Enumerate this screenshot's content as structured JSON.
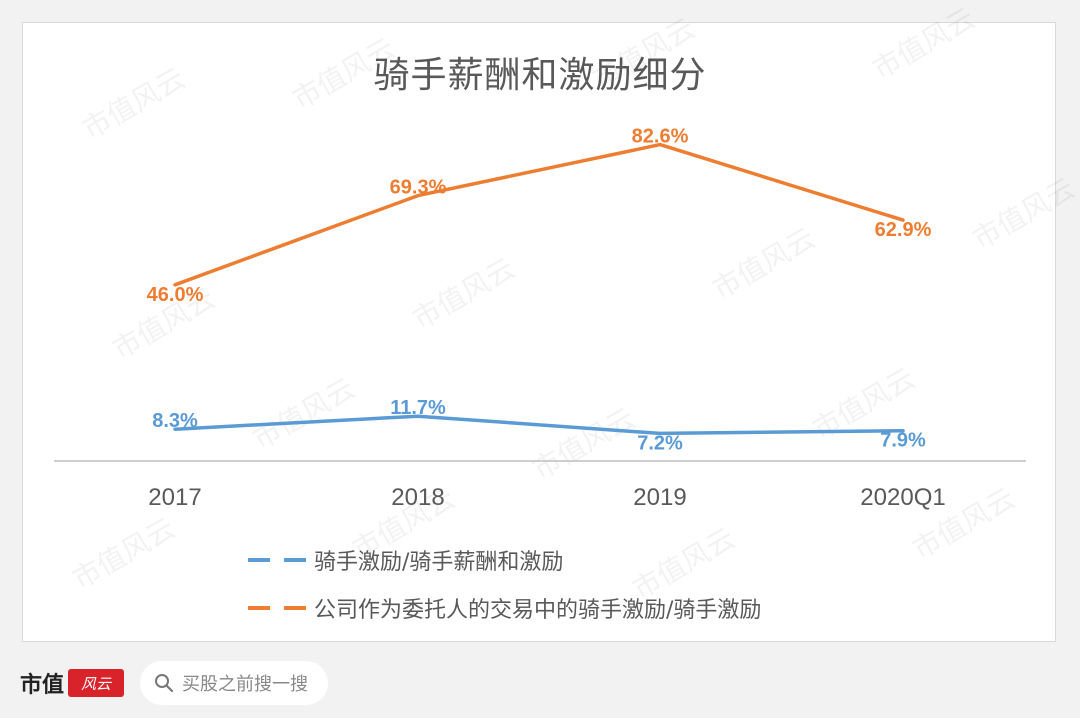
{
  "chart_data": {
    "type": "line",
    "title": "骑手薪酬和激励细分",
    "categories": [
      "2017",
      "2018",
      "2019",
      "2020Q1"
    ],
    "ylim": [
      0,
      100
    ],
    "grid": false,
    "legend_position": "bottom",
    "series": [
      {
        "name": "骑手激励/骑手薪酬和激励",
        "values": [
          8.3,
          11.7,
          7.2,
          7.9
        ],
        "labels": [
          "8.3%",
          "11.7%",
          "7.2%",
          "7.9%"
        ],
        "color": "#5b9bd5"
      },
      {
        "name": "公司作为委托人的交易中的骑手激励/骑手激励",
        "values": [
          46.0,
          69.3,
          82.6,
          62.9
        ],
        "labels": [
          "46.0%",
          "69.3%",
          "82.6%",
          "62.9%"
        ],
        "color": "#ed7d31"
      }
    ]
  },
  "footer": {
    "brand": "市值",
    "brand_mark": "风云",
    "search_icon": "search-icon",
    "search_placeholder": "买股之前搜一搜"
  },
  "watermark": {
    "text": "市值风云"
  }
}
